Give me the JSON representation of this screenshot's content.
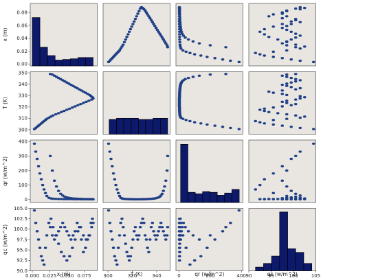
{
  "chart_data": {
    "type": "scatter",
    "subtype": "pairplot",
    "grid": false,
    "colors": {
      "panel_bg": "#e9e6e1",
      "marker": "#1f3f86",
      "bar_fill": "#0d1a6b",
      "bar_edge": "#000000"
    },
    "variables": [
      {
        "key": "x",
        "label": "x (m)",
        "short": "x (m)",
        "lim": [
          -0.003,
          0.094
        ],
        "ticks": [
          0.0,
          0.02,
          0.04,
          0.06,
          0.08
        ],
        "tick_labels": [
          "0.00",
          "0.02",
          "0.04",
          "0.06",
          "0.08"
        ],
        "bottom_ticks": [
          0.0,
          0.025,
          0.05,
          0.075
        ],
        "bottom_tick_labels": [
          "0.000",
          "0.025",
          "0.050",
          "0.075"
        ]
      },
      {
        "key": "T",
        "label": "T (K)",
        "short": "T (K)",
        "lim": [
          296,
          351
        ],
        "ticks": [
          300,
          310,
          320,
          330,
          340,
          350
        ],
        "tick_labels": [
          "300",
          "310",
          "320",
          "330",
          "340",
          "350"
        ],
        "bottom_ticks": [
          300,
          320,
          340
        ],
        "bottom_tick_labels": [
          "300",
          "320",
          "340"
        ]
      },
      {
        "key": "qr",
        "label": "qr (w/m^2)",
        "short": "qr (w/m^2)",
        "lim": [
          -20,
          410
        ],
        "ticks": [
          0,
          100,
          200,
          300,
          400
        ],
        "tick_labels": [
          "0",
          "100",
          "200",
          "300",
          "400"
        ],
        "bottom_ticks": [
          0,
          200,
          400
        ],
        "bottom_tick_labels": [
          "0",
          "200",
          "400"
        ]
      },
      {
        "key": "qc",
        "label": "qc (w/m^2)",
        "short": "qc (w/m^2)",
        "lim": [
          90,
          105
        ],
        "ticks": [
          90.0,
          92.5,
          95.0,
          97.5,
          100.0,
          102.5,
          105.0
        ],
        "tick_labels": [
          "90.0",
          "92.5",
          "95.0",
          "97.5",
          "100.0",
          "102.5",
          "105.0"
        ],
        "bottom_ticks": [
          90,
          95,
          100,
          105
        ],
        "bottom_tick_labels": [
          "90",
          "95",
          "100",
          "105"
        ]
      }
    ],
    "histograms": {
      "x": {
        "bin_edges": [
          0.0,
          0.011,
          0.022,
          0.033,
          0.044,
          0.055,
          0.066,
          0.077,
          0.088
        ],
        "counts": [
          0.072,
          0.026,
          0.013,
          0.006,
          0.007,
          0.008,
          0.01,
          0.01
        ]
      },
      "T": {
        "bin_edges": [
          301,
          307,
          313,
          319,
          325,
          331,
          337,
          343,
          349
        ],
        "counts": [
          309,
          310,
          310,
          310,
          309,
          309,
          310,
          310
        ]
      },
      "qr": {
        "bin_edges": [
          10,
          57,
          104,
          151,
          198,
          245,
          292,
          339,
          386
        ],
        "counts": [
          380,
          50,
          40,
          55,
          50,
          30,
          45,
          70
        ]
      },
      "qc": {
        "bin_edges": [
          91.5,
          93.3,
          95.1,
          96.9,
          98.7,
          100.5,
          102.3,
          104.1
        ],
        "counts": [
          1,
          2,
          4,
          16,
          6,
          5,
          2
        ],
        "max_count": 17
      }
    },
    "series": [
      {
        "name": "",
        "points": [
          [
            0.003,
            300.5,
            385,
            104.5
          ],
          [
            0.005,
            301.5,
            330,
            101.5
          ],
          [
            0.007,
            302.5,
            280,
            99.5
          ],
          [
            0.009,
            303.5,
            230,
            97.5
          ],
          [
            0.011,
            304.5,
            180,
            95.5
          ],
          [
            0.013,
            305.5,
            140,
            93.5
          ],
          [
            0.015,
            306.5,
            100,
            92.5
          ],
          [
            0.017,
            307.5,
            70,
            91.5
          ],
          [
            0.019,
            308.5,
            45,
            95.5
          ],
          [
            0.021,
            309.5,
            25,
            98.5
          ],
          [
            0.024,
            310.5,
            12,
            101.5
          ],
          [
            0.027,
            311.5,
            8,
            102.5
          ],
          [
            0.03,
            312.5,
            6,
            100.5
          ],
          [
            0.034,
            313.5,
            5,
            98.5
          ],
          [
            0.038,
            314.5,
            4,
            96.5
          ],
          [
            0.042,
            315.5,
            4,
            94.5
          ],
          [
            0.046,
            316.5,
            3,
            93.5
          ],
          [
            0.05,
            317.5,
            3,
            92.5
          ],
          [
            0.054,
            318.5,
            3,
            93.5
          ],
          [
            0.058,
            319.5,
            3,
            95.5
          ],
          [
            0.062,
            320.5,
            2,
            97.5
          ],
          [
            0.066,
            321.5,
            2,
            99.5
          ],
          [
            0.07,
            322.5,
            2,
            100.5
          ],
          [
            0.074,
            323.5,
            2,
            98.5
          ],
          [
            0.078,
            324.5,
            2,
            97.5
          ],
          [
            0.082,
            325.5,
            2,
            98.5
          ],
          [
            0.086,
            326.5,
            2,
            100.5
          ],
          [
            0.088,
            327.5,
            2,
            101.5
          ],
          [
            0.087,
            328.5,
            3,
            102.5
          ],
          [
            0.085,
            329.5,
            3,
            101.5
          ],
          [
            0.083,
            330.5,
            3,
            98.5
          ],
          [
            0.08,
            331.5,
            3,
            97.5
          ],
          [
            0.077,
            332.5,
            4,
            95.5
          ],
          [
            0.074,
            333.5,
            4,
            94.5
          ],
          [
            0.071,
            334.5,
            5,
            97.5
          ],
          [
            0.068,
            335.5,
            5,
            100.5
          ],
          [
            0.065,
            336.5,
            6,
            101.5
          ],
          [
            0.062,
            337.5,
            7,
            99.5
          ],
          [
            0.059,
            338.5,
            8,
            98.5
          ],
          [
            0.056,
            339.5,
            10,
            97.5
          ],
          [
            0.053,
            340.5,
            12,
            98.5
          ],
          [
            0.05,
            341.5,
            15,
            99.5
          ],
          [
            0.047,
            342.5,
            20,
            100.5
          ],
          [
            0.044,
            343.5,
            28,
            101.5
          ],
          [
            0.041,
            344.5,
            40,
            100.5
          ],
          [
            0.038,
            345.5,
            60,
            99.5
          ],
          [
            0.035,
            346.5,
            90,
            98.5
          ],
          [
            0.032,
            347.5,
            130,
            97.5
          ],
          [
            0.029,
            348.5,
            200,
            98.5
          ],
          [
            0.026,
            349.0,
            300,
            100.5
          ]
        ]
      }
    ]
  }
}
